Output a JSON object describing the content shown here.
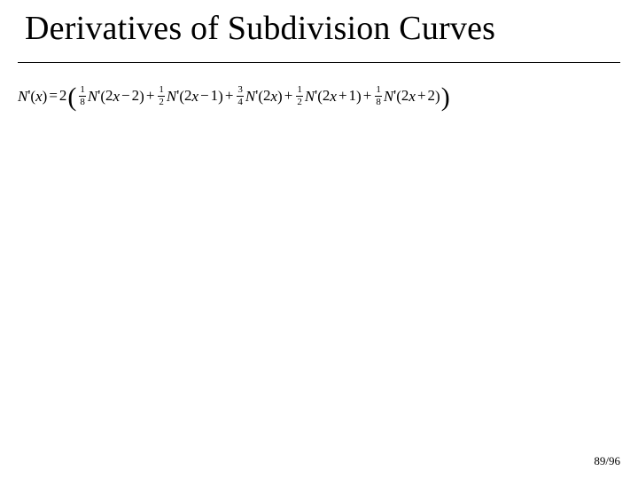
{
  "slide": {
    "title": "Derivatives of Subdivision Curves",
    "page_label": "89/96",
    "background_color": "#ffffff",
    "rule_color": "#000000",
    "title_fontsize": 38,
    "equation_fontsize": 17,
    "fraction_fontsize": 11
  },
  "equation": {
    "lhs": {
      "func": "N",
      "prime": "'",
      "lparen": "(",
      "var": "x",
      "rparen": ")"
    },
    "eq": "=",
    "factor": "2",
    "open_big": "(",
    "close_big": ")",
    "terms": [
      {
        "frac_n": "1",
        "frac_d": "8",
        "func": "N",
        "prime": "'",
        "lparen": "(",
        "inner_coef": "2",
        "inner_var": "x",
        "inner_op": "−",
        "inner_k": "2",
        "rparen": ")"
      },
      {
        "plus": "+",
        "frac_n": "1",
        "frac_d": "2",
        "func": "N",
        "prime": "'",
        "lparen": "(",
        "inner_coef": "2",
        "inner_var": "x",
        "inner_op": "−",
        "inner_k": "1",
        "rparen": ")"
      },
      {
        "plus": "+",
        "frac_n": "3",
        "frac_d": "4",
        "func": "N",
        "prime": "'",
        "lparen": "(",
        "inner_coef": "2",
        "inner_var": "x",
        "inner_op": "",
        "inner_k": "",
        "rparen": ")"
      },
      {
        "plus": "+",
        "frac_n": "1",
        "frac_d": "2",
        "func": "N",
        "prime": "'",
        "lparen": "(",
        "inner_coef": "2",
        "inner_var": "x",
        "inner_op": "+",
        "inner_k": "1",
        "rparen": ")"
      },
      {
        "plus": "+",
        "frac_n": "1",
        "frac_d": "8",
        "func": "N",
        "prime": "'",
        "lparen": "(",
        "inner_coef": "2",
        "inner_var": "x",
        "inner_op": "+",
        "inner_k": "2",
        "rparen": ")"
      }
    ]
  }
}
